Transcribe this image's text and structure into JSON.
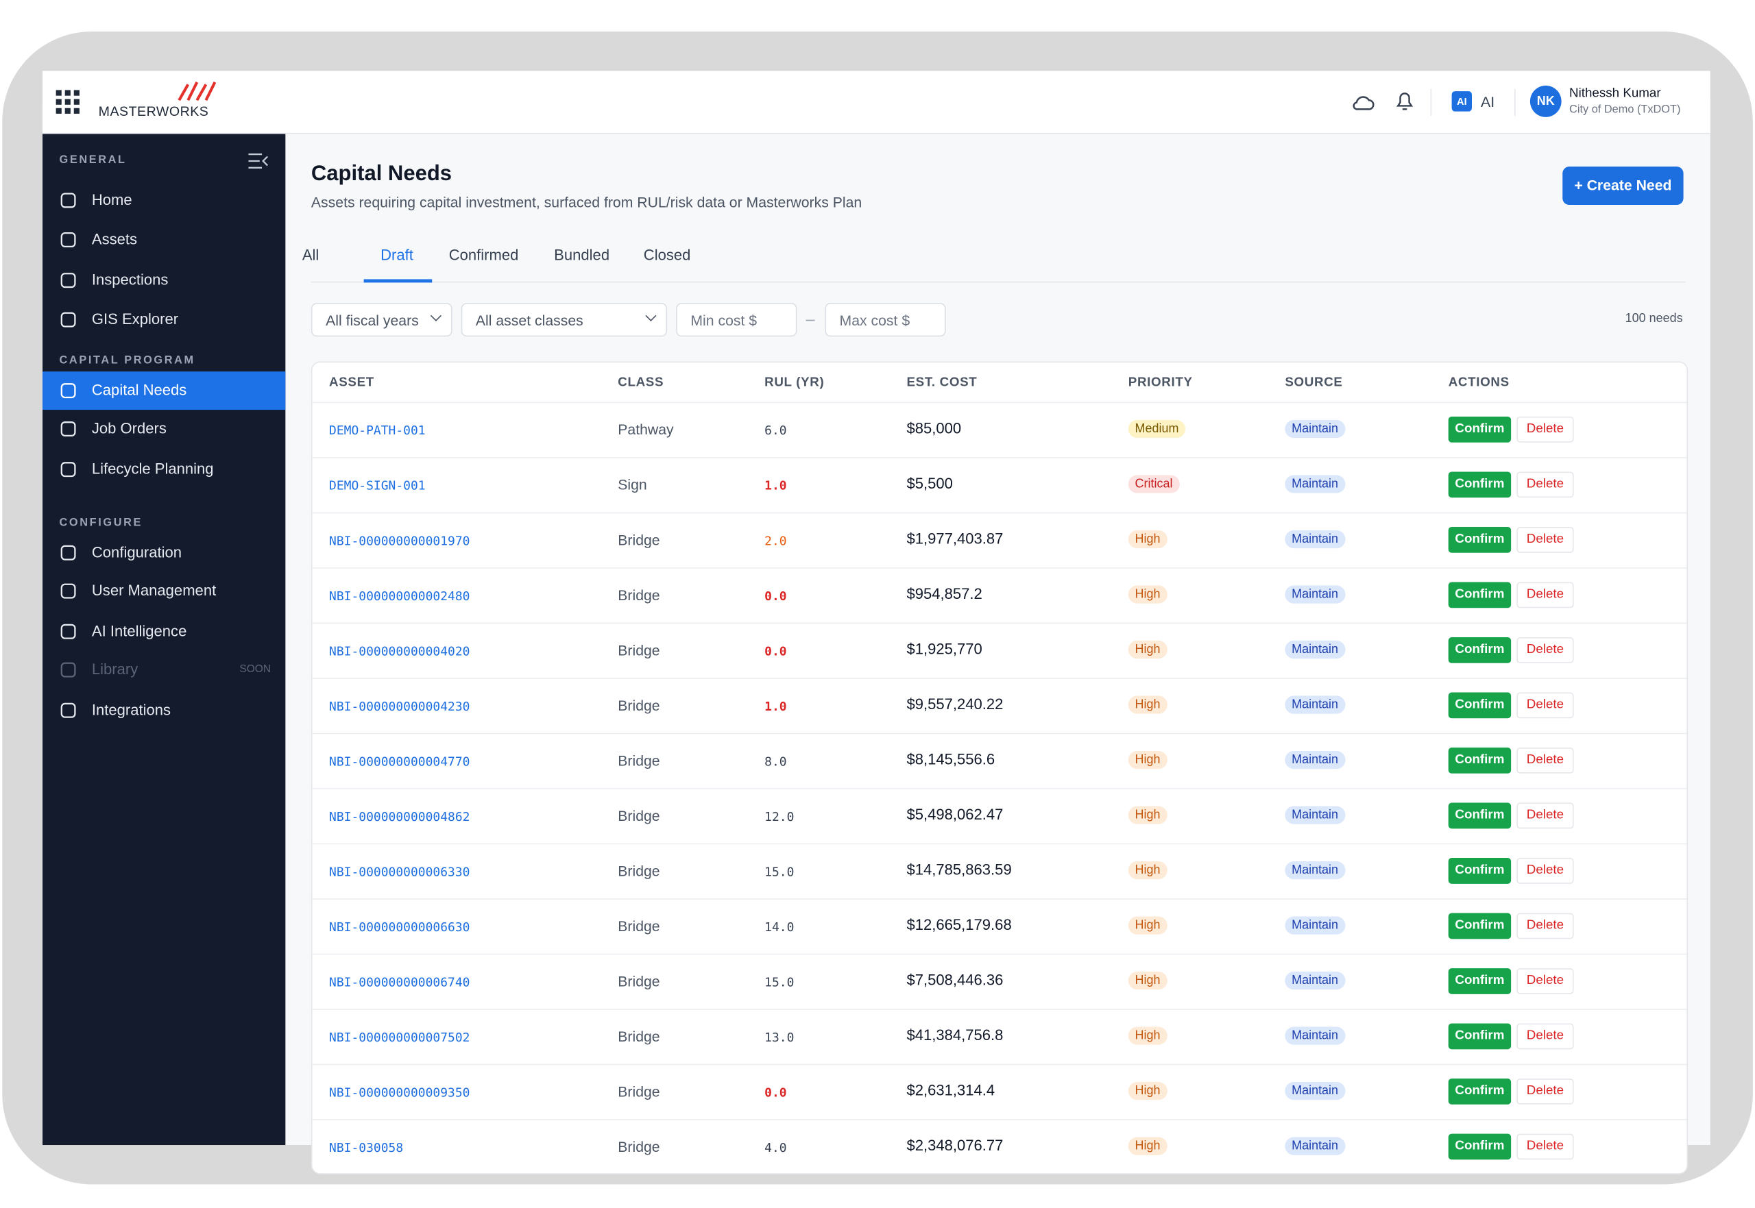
{
  "header": {
    "brand": "MASTERWORKS",
    "ai": "AI",
    "avatar": "NK",
    "user_name": "Nithessh Kumar",
    "user_org": "City of Demo (TxDOT)"
  },
  "sidebar": {
    "sections": [
      {
        "title": "GENERAL",
        "items": [
          "Home",
          "Assets",
          "Inspections",
          "GIS Explorer"
        ]
      },
      {
        "title": "CAPITAL PROGRAM",
        "items": [
          "Capital Needs",
          "Job Orders",
          "Lifecycle Planning"
        ]
      },
      {
        "title": "CONFIGURE",
        "items": [
          "Configuration",
          "User Management",
          "AI Intelligence",
          "Library",
          "Integrations"
        ]
      }
    ],
    "soon": "SOON"
  },
  "page": {
    "title": "Capital Needs",
    "subtitle": "Assets requiring capital investment, surfaced from RUL/risk data or Masterworks Plan",
    "create_button": "+ Create Need",
    "tabs": [
      "All",
      "Draft",
      "Confirmed",
      "Bundled",
      "Closed"
    ],
    "filters": [
      "All fiscal years",
      "All asset classes",
      "Min cost $",
      "Max cost $"
    ],
    "count": "100 needs"
  },
  "table": {
    "columns": [
      "ASSET",
      "CLASS",
      "RUL (YR)",
      "EST. COST",
      "PRIORITY",
      "SOURCE",
      "ACTIONS"
    ],
    "actions": [
      "Confirm",
      "Delete"
    ],
    "rows": [
      [
        "DEMO-PATH-001",
        "Pathway",
        "6.0",
        "$85,000",
        "Medium",
        "Maintain"
      ],
      [
        "DEMO-SIGN-001",
        "Sign",
        "1.0",
        "$5,500",
        "Critical",
        "Maintain"
      ],
      [
        "NBI-000000000001970",
        "Bridge",
        "2.0",
        "$1,977,403.87",
        "High",
        "Maintain"
      ],
      [
        "NBI-000000000002480",
        "Bridge",
        "0.0",
        "$954,857.2",
        "High",
        "Maintain"
      ],
      [
        "NBI-000000000004020",
        "Bridge",
        "0.0",
        "$1,925,770",
        "High",
        "Maintain"
      ],
      [
        "NBI-000000000004230",
        "Bridge",
        "1.0",
        "$9,557,240.22",
        "High",
        "Maintain"
      ],
      [
        "NBI-000000000004770",
        "Bridge",
        "8.0",
        "$8,145,556.6",
        "High",
        "Maintain"
      ],
      [
        "NBI-000000000004862",
        "Bridge",
        "12.0",
        "$5,498,062.47",
        "High",
        "Maintain"
      ],
      [
        "NBI-000000000006330",
        "Bridge",
        "15.0",
        "$14,785,863.59",
        "High",
        "Maintain"
      ],
      [
        "NBI-000000000006630",
        "Bridge",
        "14.0",
        "$12,665,179.68",
        "High",
        "Maintain"
      ],
      [
        "NBI-000000000006740",
        "Bridge",
        "15.0",
        "$7,508,446.36",
        "High",
        "Maintain"
      ],
      [
        "NBI-000000000007502",
        "Bridge",
        "13.0",
        "$41,384,756.8",
        "High",
        "Maintain"
      ],
      [
        "NBI-000000000009350",
        "Bridge",
        "0.0",
        "$2,631,314.4",
        "High",
        "Maintain"
      ],
      [
        "NBI-030058",
        "Bridge",
        "4.0",
        "$2,348,076.77",
        "High",
        "Maintain"
      ]
    ]
  }
}
